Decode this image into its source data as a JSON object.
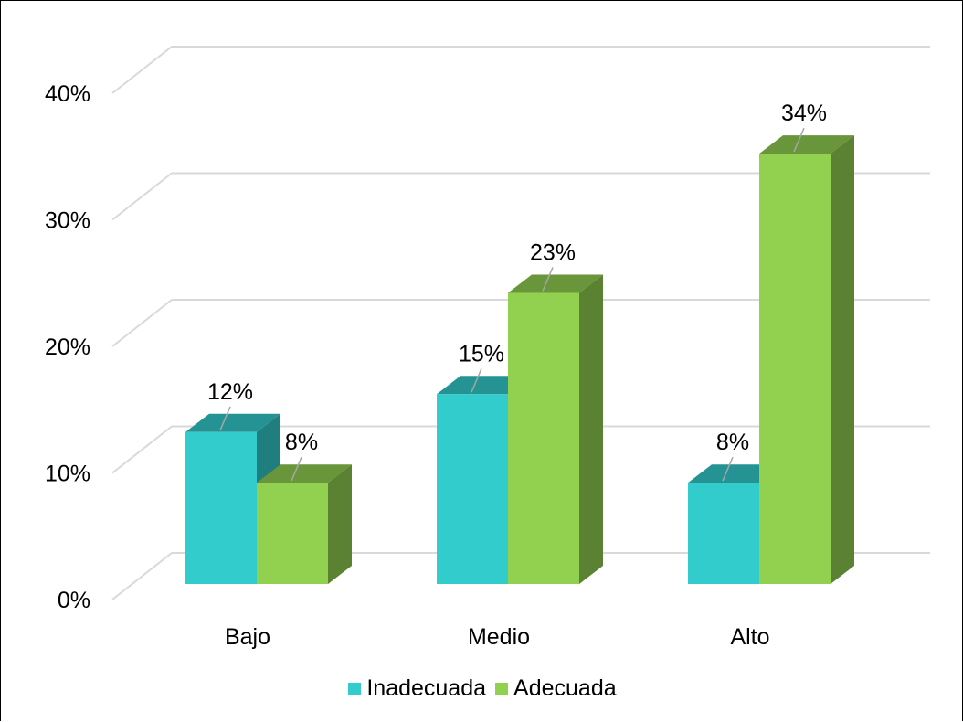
{
  "chart_data": {
    "type": "bar",
    "subtype": "3d-clustered-column",
    "categories": [
      "Bajo",
      "Medio",
      "Alto"
    ],
    "series": [
      {
        "name": "Inadecuada",
        "values": [
          12,
          15,
          8
        ],
        "labels": [
          "12%",
          "15%",
          "8%"
        ],
        "color": "#33CCCC"
      },
      {
        "name": "Adecuada",
        "values": [
          8,
          23,
          34
        ],
        "labels": [
          "8%",
          "23%",
          "34%"
        ],
        "color": "#92D050"
      }
    ],
    "ylim": [
      0,
      40
    ],
    "ytick_values": [
      0,
      10,
      20,
      30,
      40
    ],
    "ytick_labels": [
      "0%",
      "10%",
      "20%",
      "30%",
      "40%"
    ],
    "grid": true,
    "legend_position": "bottom",
    "title": "",
    "xlabel": "",
    "ylabel": ""
  }
}
